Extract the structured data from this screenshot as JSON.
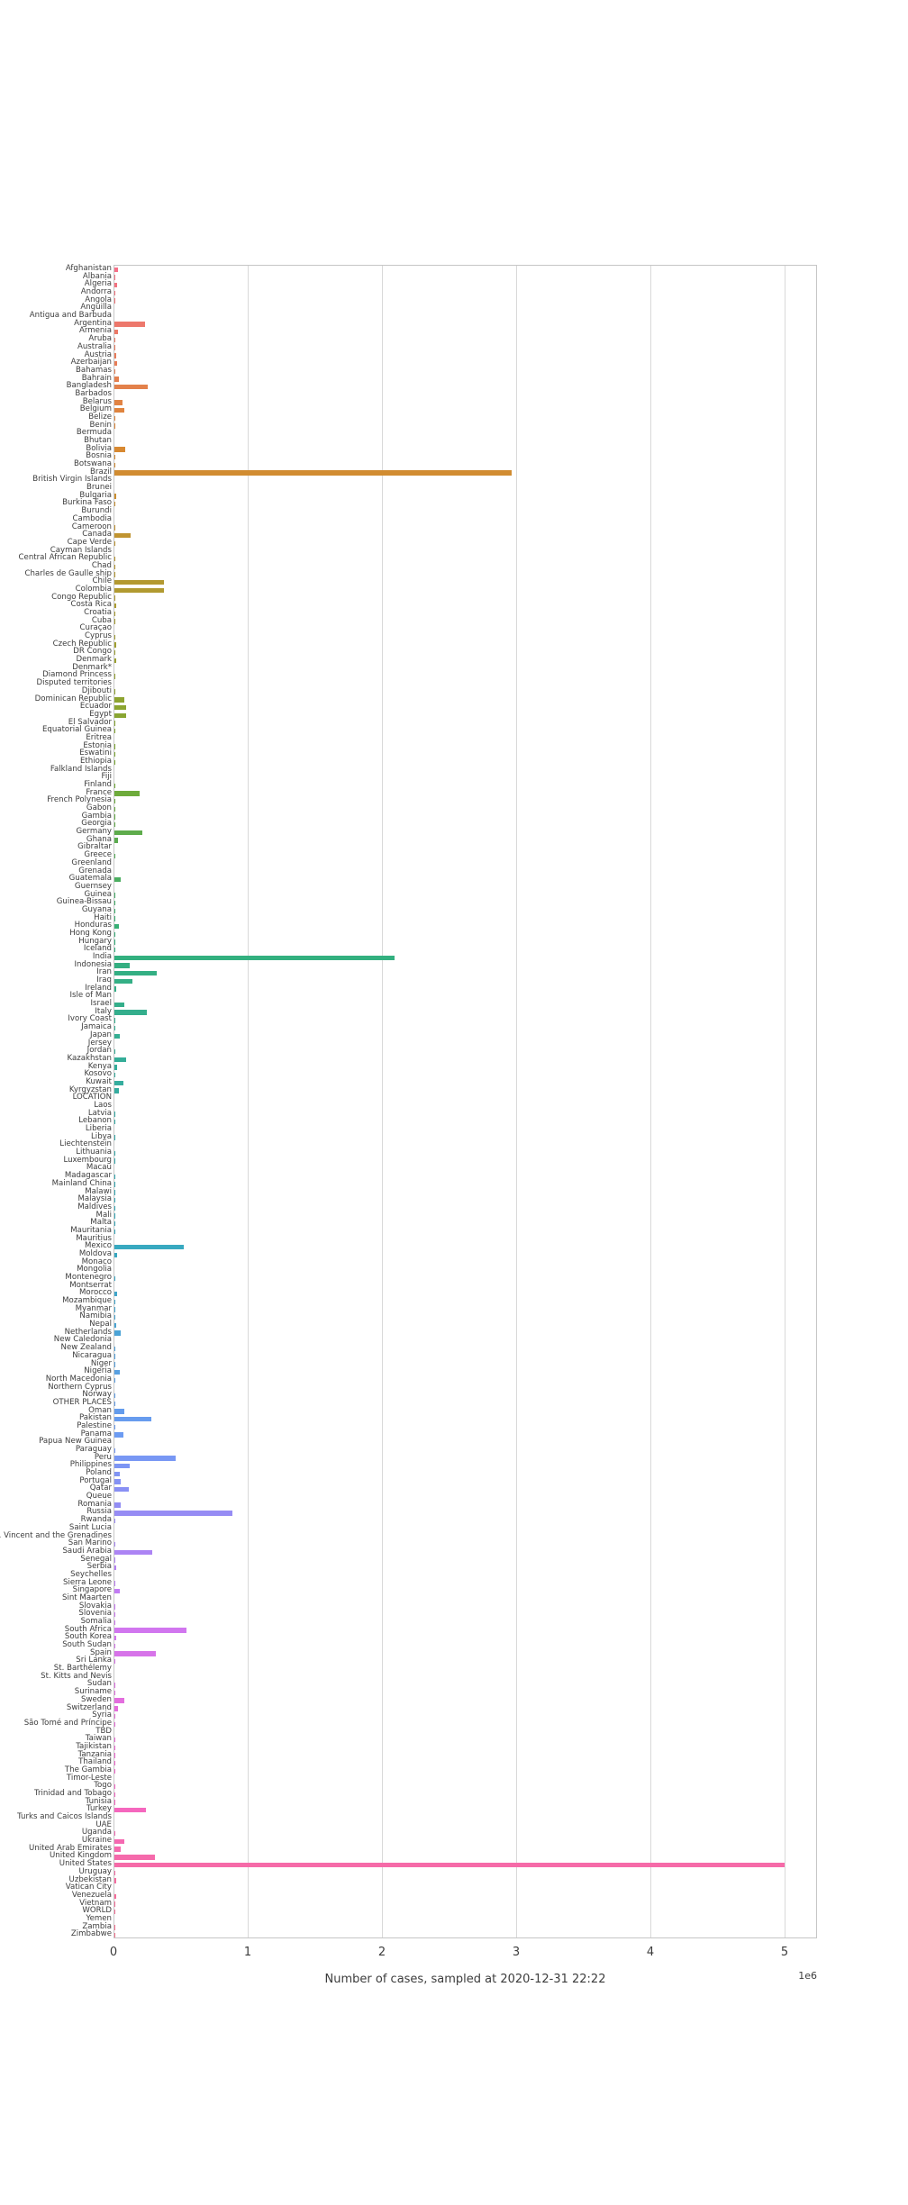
{
  "figure": {
    "background": "#ffffff",
    "text_color": "#3c3c3c",
    "grid_color": "#d9d9d9",
    "spine_color": "#c6c6c6"
  },
  "chart_data": {
    "type": "bar",
    "orientation": "horizontal",
    "title": "",
    "xlabel": "Number of cases, sampled at 2020-12-31 22:22",
    "ylabel": "",
    "x_offset_text": "1e6",
    "unit": 1000000,
    "x_ticks": [
      0,
      1,
      2,
      3,
      4,
      5
    ],
    "xlim": [
      0,
      5.24
    ],
    "grid": true,
    "legend": false,
    "palette": "husl",
    "palette_anchors": [
      "#f67088",
      "#db8831",
      "#ad9c31",
      "#77aa31",
      "#33b07a",
      "#35aca4",
      "#38a8c5",
      "#6e9af4",
      "#cc79f4",
      "#f565cc"
    ],
    "categories": [
      "Afghanistan",
      "Albania",
      "Algeria",
      "Andorra",
      "Angola",
      "Anguilla",
      "Antigua and Barbuda",
      "Argentina",
      "Armenia",
      "Aruba",
      "Australia",
      "Austria",
      "Azerbaijan",
      "Bahamas",
      "Bahrain",
      "Bangladesh",
      "Barbados",
      "Belarus",
      "Belgium",
      "Belize",
      "Benin",
      "Bermuda",
      "Bhutan",
      "Bolivia",
      "Bosnia",
      "Botswana",
      "Brazil",
      "British Virgin Islands",
      "Brunei",
      "Bulgaria",
      "Burkina Faso",
      "Burundi",
      "Cambodia",
      "Cameroon",
      "Canada",
      "Cape Verde",
      "Cayman Islands",
      "Central African Republic",
      "Chad",
      "Charles de Gaulle ship",
      "Chile",
      "Colombia",
      "Congo Republic",
      "Costa Rica",
      "Croatia",
      "Cuba",
      "Curaçao",
      "Cyprus",
      "Czech Republic",
      "DR Congo",
      "Denmark",
      "Denmark*",
      "Diamond Princess",
      "Disputed territories",
      "Djibouti",
      "Dominican Republic",
      "Ecuador",
      "Egypt",
      "El Salvador",
      "Equatorial Guinea",
      "Eritrea",
      "Estonia",
      "Eswatini",
      "Ethiopia",
      "Falkland Islands",
      "Fiji",
      "Finland",
      "France",
      "French Polynesia",
      "Gabon",
      "Gambia",
      "Georgia",
      "Germany",
      "Ghana",
      "Gibraltar",
      "Greece",
      "Greenland",
      "Grenada",
      "Guatemala",
      "Guernsey",
      "Guinea",
      "Guinea-Bissau",
      "Guyana",
      "Haiti",
      "Honduras",
      "Hong Kong",
      "Hungary",
      "Iceland",
      "India",
      "Indonesia",
      "Iran",
      "Iraq",
      "Ireland",
      "Isle of Man",
      "Israel",
      "Italy",
      "Ivory Coast",
      "Jamaica",
      "Japan",
      "Jersey",
      "Jordan",
      "Kazakhstan",
      "Kenya",
      "Kosovo",
      "Kuwait",
      "Kyrgyzstan",
      "LOCATION",
      "Laos",
      "Latvia",
      "Lebanon",
      "Liberia",
      "Libya",
      "Liechtenstein",
      "Lithuania",
      "Luxembourg",
      "Macau",
      "Madagascar",
      "Mainland China",
      "Malawi",
      "Malaysia",
      "Maldives",
      "Mali",
      "Malta",
      "Mauritania",
      "Mauritius",
      "Mexico",
      "Moldova",
      "Monaco",
      "Mongolia",
      "Montenegro",
      "Montserrat",
      "Morocco",
      "Mozambique",
      "Myanmar",
      "Namibia",
      "Nepal",
      "Netherlands",
      "New Caledonia",
      "New Zealand",
      "Nicaragua",
      "Niger",
      "Nigeria",
      "North Macedonia",
      "Northern Cyprus",
      "Norway",
      "OTHER PLACES",
      "Oman",
      "Pakistan",
      "Palestine",
      "Panama",
      "Papua New Guinea",
      "Paraguay",
      "Peru",
      "Philippines",
      "Poland",
      "Portugal",
      "Qatar",
      "Queue",
      "Romania",
      "Russia",
      "Rwanda",
      "Saint Lucia",
      "St. Vincent and the Grenadines",
      "San Marino",
      "Saudi Arabia",
      "Senegal",
      "Serbia",
      "Seychelles",
      "Sierra Leone",
      "Singapore",
      "Sint Maarten",
      "Slovakia",
      "Slovenia",
      "Somalia",
      "South Africa",
      "South Korea",
      "South Sudan",
      "Spain",
      "Sri Lanka",
      "St. Barthélemy",
      "St. Kitts and Nevis",
      "Sudan",
      "Suriname",
      "Sweden",
      "Switzerland",
      "Syria",
      "São Tomé and Príncipe",
      "TBD",
      "Taiwan",
      "Tajikistan",
      "Tanzania",
      "Thailand",
      "The Gambia",
      "Timor-Leste",
      "Togo",
      "Trinidad and Tobago",
      "Tunisia",
      "Turkey",
      "Turks and Caicos Islands",
      "UAE",
      "Uganda",
      "Ukraine",
      "United Arab Emirates",
      "United Kingdom",
      "United States",
      "Uruguay",
      "Uzbekistan",
      "Vatican City",
      "Venezuela",
      "Vietnam",
      "WORLD",
      "Yemen",
      "Zambia",
      "Zimbabwe"
    ],
    "values": [
      0.03,
      0.006,
      0.02,
      0.002,
      0.004,
      0.0,
      0.0,
      0.23,
      0.029,
      0.002,
      0.01,
      0.011,
      0.022,
      0.002,
      0.034,
      0.25,
      0.0,
      0.063,
      0.073,
      0.002,
      0.001,
      0.0,
      0.0,
      0.081,
      0.009,
      0.002,
      2.96,
      0.0,
      0.0,
      0.012,
      0.001,
      0.0,
      0.0,
      0.007,
      0.119,
      0.002,
      0.0,
      0.002,
      0.001,
      0.001,
      0.367,
      0.37,
      0.002,
      0.012,
      0.005,
      0.002,
      0.0,
      0.001,
      0.012,
      0.004,
      0.014,
      0.0,
      0.001,
      0.0,
      0.002,
      0.072,
      0.085,
      0.088,
      0.008,
      0.001,
      0.0,
      0.002,
      0.001,
      0.009,
      0.0,
      0.0,
      0.005,
      0.188,
      0.001,
      0.002,
      0.001,
      0.002,
      0.208,
      0.029,
      0.0,
      0.004,
      0.0,
      0.0,
      0.045,
      0.0,
      0.004,
      0.001,
      0.001,
      0.004,
      0.036,
      0.001,
      0.005,
      0.002,
      2.09,
      0.112,
      0.313,
      0.134,
      0.013,
      0.0,
      0.074,
      0.24,
      0.008,
      0.001,
      0.038,
      0.0,
      0.001,
      0.09,
      0.02,
      0.002,
      0.065,
      0.034,
      0.0,
      0.0,
      0.001,
      0.005,
      0.0,
      0.002,
      0.0,
      0.001,
      0.004,
      0.0,
      0.002,
      0.002,
      0.001,
      0.002,
      0.002,
      0.001,
      0.001,
      0.002,
      0.0,
      0.52,
      0.018,
      0.0,
      0.0,
      0.002,
      0.0,
      0.02,
      0.002,
      0.005,
      0.003,
      0.011,
      0.05,
      0.0,
      0.002,
      0.001,
      0.001,
      0.038,
      0.005,
      0.0,
      0.005,
      0.001,
      0.076,
      0.275,
      0.008,
      0.067,
      0.0,
      0.002,
      0.456,
      0.114,
      0.042,
      0.045,
      0.107,
      0.0,
      0.05,
      0.88,
      0.001,
      0.0,
      0.0,
      0.001,
      0.284,
      0.004,
      0.011,
      0.0,
      0.001,
      0.042,
      0.0,
      0.001,
      0.001,
      0.002,
      0.537,
      0.012,
      0.002,
      0.306,
      0.002,
      0.0,
      0.0,
      0.009,
      0.001,
      0.076,
      0.025,
      0.001,
      0.001,
      0.0,
      0.001,
      0.007,
      0.001,
      0.003,
      0.001,
      0.0,
      0.001,
      0.001,
      0.002,
      0.235,
      0.0,
      0.0,
      0.001,
      0.076,
      0.049,
      0.3,
      4.99,
      0.001,
      0.013,
      0.0,
      0.013,
      0.001,
      0.001,
      0.0,
      0.002,
      0.001
    ]
  }
}
